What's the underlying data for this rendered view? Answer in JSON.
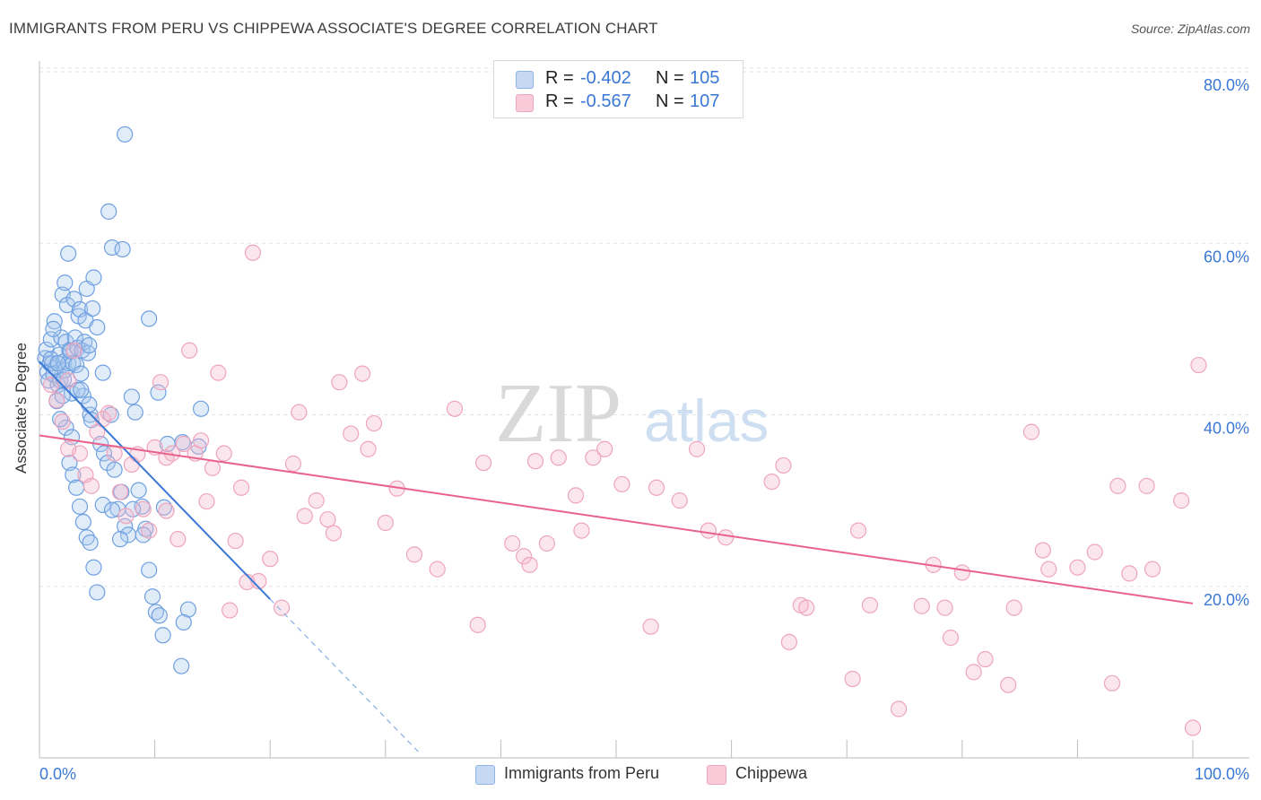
{
  "header": {
    "title": "IMMIGRANTS FROM PERU VS CHIPPEWA ASSOCIATE'S DEGREE CORRELATION CHART",
    "source": "Source: ZipAtlas.com"
  },
  "watermark": {
    "zip": "ZIP",
    "atlas": "atlas"
  },
  "legend": {
    "rows": [
      {
        "r_label": "R =",
        "r_value": "-0.402",
        "n_label": "N =",
        "n_value": "105",
        "color": "#a9c8ef"
      },
      {
        "r_label": "R =",
        "r_value": "-0.567",
        "n_label": "N =",
        "n_value": "107",
        "color": "#f5b8cb"
      }
    ]
  },
  "bottom_legend": {
    "items": [
      {
        "label": "Immigrants from Peru",
        "color": "#a9c8ef"
      },
      {
        "label": "Chippewa",
        "color": "#f5b8cb"
      }
    ]
  },
  "chart_data": {
    "type": "scatter",
    "title": "IMMIGRANTS FROM PERU VS CHIPPEWA ASSOCIATE'S DEGREE CORRELATION CHART",
    "xlabel": "",
    "ylabel": "Associate's Degree",
    "xlim": [
      0,
      100
    ],
    "ylim": [
      0,
      80
    ],
    "x_tick_labels": [
      "0.0%",
      "100.0%"
    ],
    "y_ticks": [
      20,
      40,
      60,
      80
    ],
    "y_tick_labels": [
      "20.0%",
      "40.0%",
      "60.0%",
      "80.0%"
    ],
    "grid": true,
    "legend_position": "top-center",
    "colors": {
      "peru": "#3a78d4",
      "peru_fill": "#a9c8ef",
      "chippewa": "#e8638c",
      "chippewa_fill": "#f5b8cb"
    },
    "series": [
      {
        "name": "Immigrants from Peru",
        "R": -0.402,
        "N": 105,
        "trend": {
          "x": [
            0,
            20.0
          ],
          "y": [
            46.2,
            18.5
          ],
          "dashed_to": {
            "x": 33.0,
            "y": 0.5
          }
        },
        "points": [
          [
            0.5,
            46.6
          ],
          [
            0.6,
            47.6
          ],
          [
            0.7,
            45.0
          ],
          [
            0.8,
            44.0
          ],
          [
            0.9,
            46.0
          ],
          [
            1.0,
            48.8
          ],
          [
            1.1,
            46.0
          ],
          [
            1.2,
            44.7
          ],
          [
            1.3,
            50.9
          ],
          [
            1.4,
            45.5
          ],
          [
            1.5,
            41.6
          ],
          [
            1.6,
            43.5
          ],
          [
            1.7,
            47.0
          ],
          [
            1.8,
            44.0
          ],
          [
            1.9,
            49.0
          ],
          [
            2.0,
            54.0
          ],
          [
            2.1,
            46.2
          ],
          [
            2.2,
            45.2
          ],
          [
            2.3,
            48.5
          ],
          [
            2.4,
            52.8
          ],
          [
            2.5,
            46.0
          ],
          [
            2.6,
            47.5
          ],
          [
            2.7,
            47.4
          ],
          [
            2.8,
            42.5
          ],
          [
            2.9,
            46.0
          ],
          [
            3.0,
            53.5
          ],
          [
            3.1,
            49.0
          ],
          [
            3.2,
            45.8
          ],
          [
            3.3,
            47.8
          ],
          [
            3.4,
            51.5
          ],
          [
            3.5,
            52.3
          ],
          [
            3.6,
            44.8
          ],
          [
            3.7,
            47.5
          ],
          [
            3.8,
            42.2
          ],
          [
            3.9,
            48.5
          ],
          [
            4.0,
            51.0
          ],
          [
            4.1,
            54.7
          ],
          [
            4.2,
            47.2
          ],
          [
            4.3,
            48.1
          ],
          [
            4.4,
            40.0
          ],
          [
            4.5,
            39.4
          ],
          [
            4.6,
            52.4
          ],
          [
            4.7,
            56.0
          ],
          [
            1.2,
            50.0
          ],
          [
            2.2,
            55.4
          ],
          [
            2.5,
            58.8
          ],
          [
            1.0,
            46.5
          ],
          [
            1.6,
            46.0
          ],
          [
            2.1,
            44.1
          ],
          [
            3.3,
            42.9
          ],
          [
            5.0,
            50.2
          ],
          [
            5.3,
            36.6
          ],
          [
            5.6,
            35.5
          ],
          [
            5.9,
            34.4
          ],
          [
            6.2,
            40.0
          ],
          [
            6.5,
            33.6
          ],
          [
            6.8,
            29.0
          ],
          [
            7.1,
            31.0
          ],
          [
            7.4,
            27.0
          ],
          [
            7.7,
            26.0
          ],
          [
            8.0,
            42.1
          ],
          [
            8.3,
            40.3
          ],
          [
            8.6,
            31.2
          ],
          [
            8.9,
            29.3
          ],
          [
            9.2,
            26.7
          ],
          [
            9.5,
            21.9
          ],
          [
            9.8,
            18.8
          ],
          [
            10.1,
            17.0
          ],
          [
            10.4,
            16.6
          ],
          [
            10.7,
            14.3
          ],
          [
            2.3,
            38.5
          ],
          [
            2.6,
            34.4
          ],
          [
            2.9,
            33.0
          ],
          [
            3.2,
            31.5
          ],
          [
            3.5,
            29.3
          ],
          [
            3.8,
            27.5
          ],
          [
            4.1,
            25.7
          ],
          [
            4.4,
            25.1
          ],
          [
            4.7,
            22.2
          ],
          [
            5.0,
            19.3
          ],
          [
            1.8,
            39.5
          ],
          [
            2.0,
            42.2
          ],
          [
            2.8,
            37.4
          ],
          [
            3.6,
            42.9
          ],
          [
            4.3,
            41.2
          ],
          [
            5.5,
            44.9
          ],
          [
            6.0,
            63.7
          ],
          [
            6.3,
            59.5
          ],
          [
            7.2,
            59.3
          ],
          [
            7.4,
            72.7
          ],
          [
            9.5,
            51.2
          ],
          [
            10.3,
            42.6
          ],
          [
            10.8,
            29.2
          ],
          [
            11.1,
            36.6
          ],
          [
            12.4,
            36.8
          ],
          [
            14.0,
            40.7
          ],
          [
            13.8,
            36.3
          ],
          [
            12.9,
            17.3
          ],
          [
            12.5,
            15.8
          ],
          [
            12.3,
            10.7
          ],
          [
            5.5,
            29.5
          ],
          [
            6.3,
            28.9
          ],
          [
            7.0,
            25.5
          ],
          [
            8.1,
            29.0
          ],
          [
            9.0,
            26.0
          ]
        ]
      },
      {
        "name": "Chippewa",
        "R": -0.567,
        "N": 107,
        "trend": {
          "x": [
            0,
            100
          ],
          "y": [
            37.6,
            18.0
          ]
        },
        "points": [
          [
            1.0,
            43.5
          ],
          [
            1.5,
            41.7
          ],
          [
            2.0,
            39.2
          ],
          [
            2.5,
            44.0
          ],
          [
            3.0,
            47.5
          ],
          [
            3.5,
            35.5
          ],
          [
            4.0,
            33.0
          ],
          [
            4.5,
            31.7
          ],
          [
            5.0,
            38.0
          ],
          [
            5.5,
            39.5
          ],
          [
            6.0,
            40.2
          ],
          [
            6.5,
            35.5
          ],
          [
            7.0,
            31.0
          ],
          [
            7.5,
            28.2
          ],
          [
            8.0,
            34.2
          ],
          [
            8.5,
            35.4
          ],
          [
            9.0,
            29.0
          ],
          [
            9.5,
            26.5
          ],
          [
            10.0,
            36.2
          ],
          [
            10.5,
            43.8
          ],
          [
            11.0,
            28.8
          ],
          [
            11.5,
            35.5
          ],
          [
            12.0,
            25.5
          ],
          [
            12.5,
            36.6
          ],
          [
            13.0,
            47.5
          ],
          [
            13.5,
            35.5
          ],
          [
            14.0,
            37.0
          ],
          [
            14.5,
            29.9
          ],
          [
            15.0,
            33.8
          ],
          [
            15.5,
            44.9
          ],
          [
            16.0,
            35.5
          ],
          [
            16.5,
            17.2
          ],
          [
            17.0,
            25.3
          ],
          [
            17.5,
            31.5
          ],
          [
            18.0,
            20.5
          ],
          [
            18.5,
            58.9
          ],
          [
            19.0,
            20.6
          ],
          [
            20.0,
            23.2
          ],
          [
            21.0,
            17.5
          ],
          [
            22.0,
            34.3
          ],
          [
            22.5,
            40.3
          ],
          [
            23.0,
            28.2
          ],
          [
            24.0,
            30.0
          ],
          [
            25.0,
            27.8
          ],
          [
            25.5,
            26.2
          ],
          [
            26.0,
            43.8
          ],
          [
            27.0,
            37.8
          ],
          [
            28.0,
            44.8
          ],
          [
            28.5,
            36.0
          ],
          [
            29.0,
            39.0
          ],
          [
            30.0,
            27.4
          ],
          [
            31.0,
            31.4
          ],
          [
            32.5,
            23.7
          ],
          [
            34.5,
            22.0
          ],
          [
            36.0,
            40.7
          ],
          [
            38.0,
            15.5
          ],
          [
            38.5,
            34.4
          ],
          [
            41.0,
            25.0
          ],
          [
            42.0,
            23.5
          ],
          [
            42.5,
            22.5
          ],
          [
            43.0,
            34.6
          ],
          [
            44.0,
            25.0
          ],
          [
            45.0,
            35.0
          ],
          [
            46.5,
            30.6
          ],
          [
            47.0,
            26.5
          ],
          [
            48.0,
            35.0
          ],
          [
            49.0,
            36.0
          ],
          [
            50.5,
            31.9
          ],
          [
            53.0,
            15.3
          ],
          [
            53.5,
            31.5
          ],
          [
            55.5,
            30.0
          ],
          [
            57.0,
            36.0
          ],
          [
            58.0,
            26.5
          ],
          [
            59.5,
            25.7
          ],
          [
            63.5,
            32.2
          ],
          [
            64.5,
            34.1
          ],
          [
            65.0,
            13.5
          ],
          [
            66.0,
            17.8
          ],
          [
            66.5,
            17.5
          ],
          [
            70.5,
            9.2
          ],
          [
            71.0,
            26.5
          ],
          [
            72.0,
            17.8
          ],
          [
            74.5,
            5.7
          ],
          [
            76.5,
            17.7
          ],
          [
            77.5,
            22.5
          ],
          [
            78.5,
            17.5
          ],
          [
            79.0,
            14.0
          ],
          [
            80.0,
            21.6
          ],
          [
            81.0,
            10.0
          ],
          [
            82.0,
            11.5
          ],
          [
            84.0,
            8.5
          ],
          [
            84.5,
            17.5
          ],
          [
            86.0,
            38.0
          ],
          [
            87.0,
            24.2
          ],
          [
            87.5,
            22.0
          ],
          [
            90.0,
            22.2
          ],
          [
            91.5,
            24.0
          ],
          [
            93.0,
            8.7
          ],
          [
            93.5,
            31.7
          ],
          [
            94.5,
            21.5
          ],
          [
            96.0,
            31.7
          ],
          [
            96.5,
            22.0
          ],
          [
            99.0,
            30.0
          ],
          [
            100.0,
            3.5
          ],
          [
            100.5,
            45.8
          ],
          [
            2.5,
            36.0
          ],
          [
            11.0,
            35.0
          ]
        ]
      }
    ]
  }
}
